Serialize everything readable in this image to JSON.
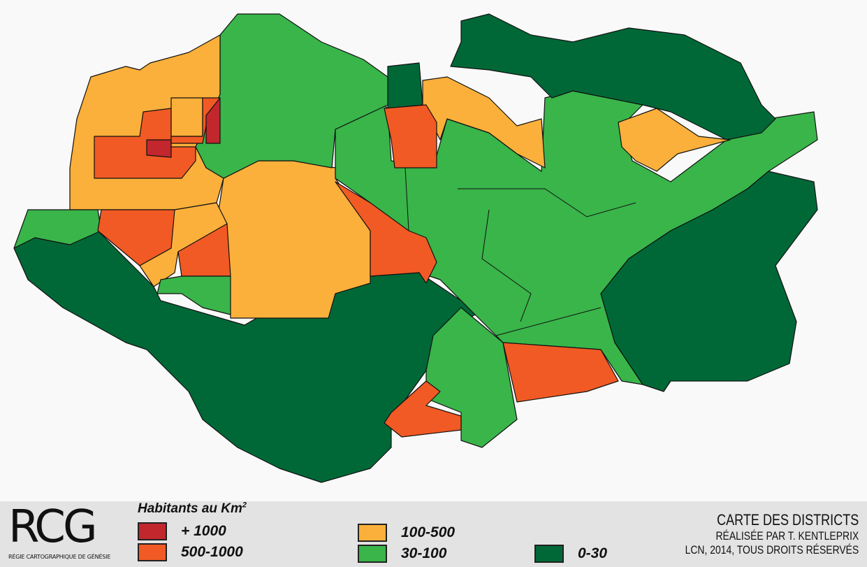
{
  "colors": {
    "c1000": "#c1272d",
    "c500": "#f15a24",
    "c100": "#fbb03b",
    "c30": "#39b54a",
    "c0": "#006837"
  },
  "legend": {
    "title": "Habitants au Km",
    "title_sup": "2",
    "items": [
      {
        "label": "+ 1000",
        "color": "#c1272d"
      },
      {
        "label": "500-1000",
        "color": "#f15a24"
      },
      {
        "label": "100-500",
        "color": "#fbb03b"
      },
      {
        "label": "30-100",
        "color": "#39b54a"
      },
      {
        "label": "0-30",
        "color": "#006837"
      }
    ]
  },
  "logo": {
    "main": "RCG",
    "sub": "RÉGIE CARTOGRAPHIQUE DE GÉNÉSIE"
  },
  "credits": {
    "title": "CARTE DES DISTRICTS",
    "author": "RÉALISÉE PAR T. KENTLEPRIX",
    "rights": "LCN, 2014, TOUS DROITS RÉSERVÉS"
  }
}
